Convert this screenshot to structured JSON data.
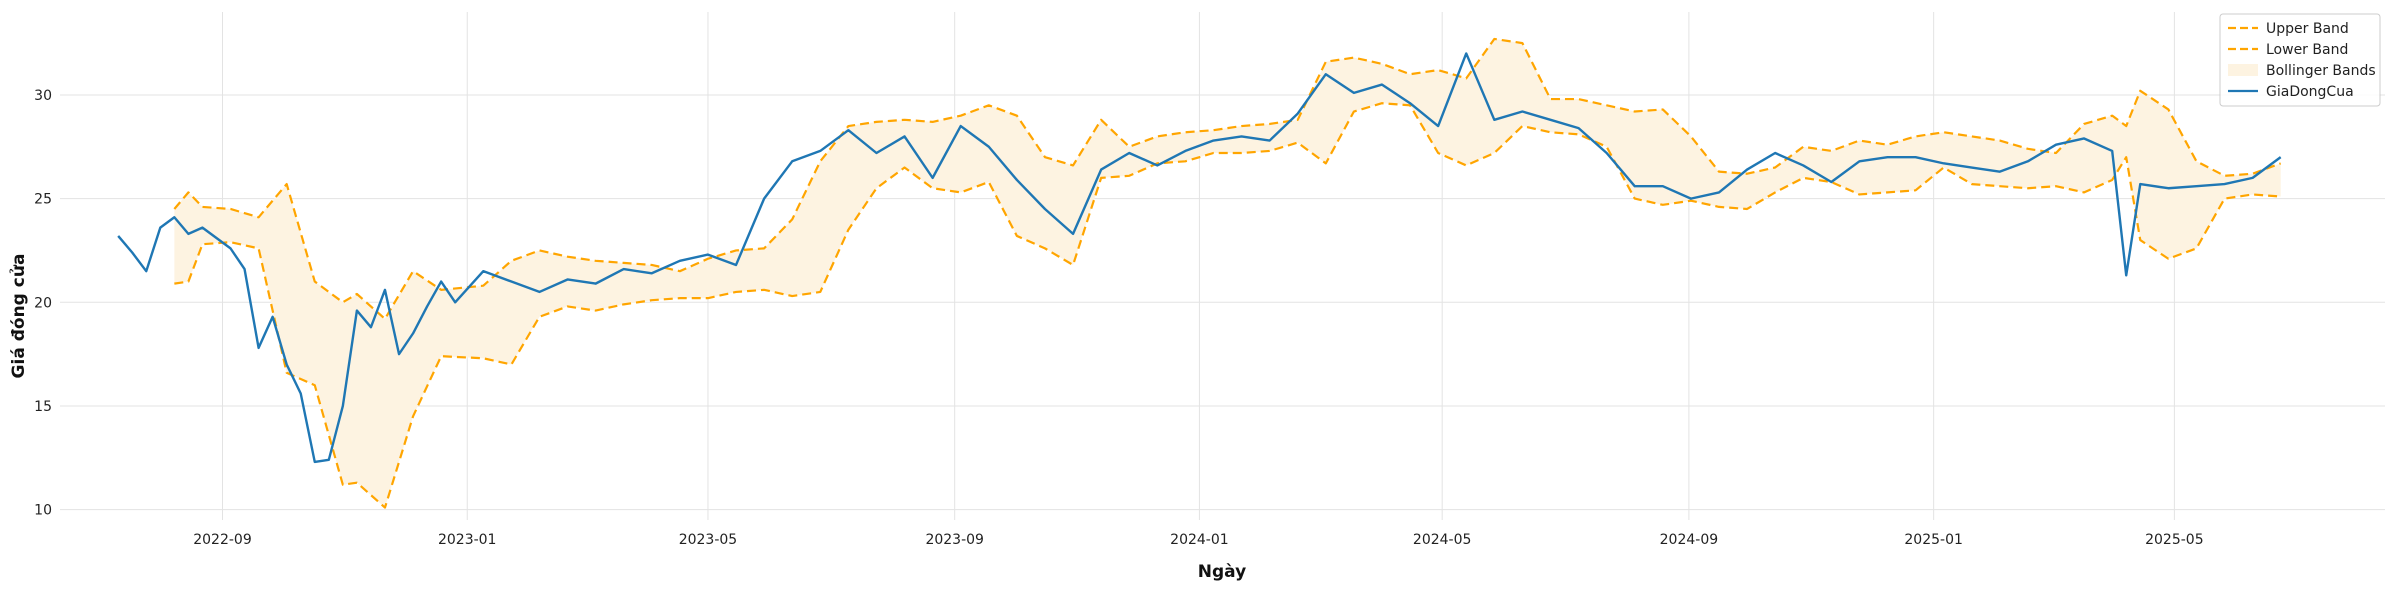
{
  "chart_data": {
    "type": "line",
    "title": "",
    "xlabel": "Ngày",
    "ylabel": "Giá đóng cửa",
    "x_ticks": [
      "2022-09",
      "2023-01",
      "2023-05",
      "2023-09",
      "2024-01",
      "2024-05",
      "2024-09",
      "2025-01",
      "2025-05"
    ],
    "y_ticks": [
      10,
      15,
      20,
      25,
      30
    ],
    "xlim": [
      "2022-06-12",
      "2025-08-14"
    ],
    "ylim": [
      9.5,
      34.0
    ],
    "grid": true,
    "legend_position": "top-right",
    "legend": [
      {
        "label": "Upper Band",
        "style": "dashed",
        "color": "#FFA500"
      },
      {
        "label": "Lower Band",
        "style": "dashed",
        "color": "#FFA500"
      },
      {
        "label": "Bollinger Bands",
        "style": "fill",
        "color": "#FDF3E1"
      },
      {
        "label": "GiaDongCua",
        "style": "solid",
        "color": "#1F77B4"
      }
    ],
    "series": [
      {
        "name": "GiaDongCua",
        "color": "#1F77B4",
        "x": [
          "2022-07-11",
          "2022-07-18",
          "2022-07-25",
          "2022-08-01",
          "2022-08-08",
          "2022-08-15",
          "2022-08-22",
          "2022-08-29",
          "2022-09-05",
          "2022-09-12",
          "2022-09-19",
          "2022-09-26",
          "2022-10-03",
          "2022-10-10",
          "2022-10-17",
          "2022-10-24",
          "2022-10-31",
          "2022-11-07",
          "2022-11-14",
          "2022-11-21",
          "2022-11-28",
          "2022-12-05",
          "2022-12-12",
          "2022-12-19",
          "2022-12-26",
          "2023-01-09",
          "2023-01-23",
          "2023-02-06",
          "2023-02-20",
          "2023-03-06",
          "2023-03-20",
          "2023-04-03",
          "2023-04-17",
          "2023-05-01",
          "2023-05-15",
          "2023-05-29",
          "2023-06-12",
          "2023-06-26",
          "2023-07-10",
          "2023-07-24",
          "2023-08-07",
          "2023-08-21",
          "2023-09-04",
          "2023-09-18",
          "2023-10-02",
          "2023-10-16",
          "2023-10-30",
          "2023-11-13",
          "2023-11-27",
          "2023-12-11",
          "2023-12-25",
          "2024-01-08",
          "2024-01-22",
          "2024-02-05",
          "2024-02-19",
          "2024-03-04",
          "2024-03-18",
          "2024-04-01",
          "2024-04-15",
          "2024-04-29",
          "2024-05-13",
          "2024-05-27",
          "2024-06-10",
          "2024-06-24",
          "2024-07-08",
          "2024-07-22",
          "2024-08-05",
          "2024-08-19",
          "2024-09-02",
          "2024-09-16",
          "2024-09-30",
          "2024-10-14",
          "2024-10-28",
          "2024-11-11",
          "2024-11-25",
          "2024-12-09",
          "2024-12-23",
          "2025-01-06",
          "2025-01-20",
          "2025-02-03",
          "2025-02-17",
          "2025-03-03",
          "2025-03-17",
          "2025-03-31",
          "2025-04-07",
          "2025-04-14",
          "2025-04-28",
          "2025-05-12",
          "2025-05-26",
          "2025-06-09",
          "2025-06-23"
        ],
        "values": [
          23.2,
          22.4,
          21.5,
          23.6,
          24.1,
          23.3,
          23.6,
          23.1,
          22.6,
          21.6,
          17.8,
          19.3,
          17.0,
          15.6,
          12.3,
          12.4,
          15.0,
          19.6,
          18.8,
          20.6,
          17.5,
          18.5,
          19.8,
          21.0,
          20.0,
          21.5,
          21.0,
          20.5,
          21.1,
          20.9,
          21.6,
          21.4,
          22.0,
          22.3,
          21.8,
          25.0,
          26.8,
          27.3,
          28.3,
          27.2,
          28.0,
          26.0,
          28.5,
          27.5,
          25.9,
          24.5,
          23.3,
          26.4,
          27.2,
          26.6,
          27.3,
          27.8,
          28.0,
          27.8,
          29.1,
          31.0,
          30.1,
          30.5,
          29.6,
          28.5,
          32.0,
          28.8,
          29.2,
          28.8,
          28.4,
          27.2,
          25.6,
          25.6,
          25.0,
          25.3,
          26.4,
          27.2,
          26.6,
          25.8,
          26.8,
          27.0,
          27.0,
          26.7,
          26.5,
          26.3,
          26.8,
          27.6,
          27.9,
          27.3,
          21.3,
          25.7,
          25.5,
          25.6,
          25.7,
          26.0,
          27.0
        ]
      },
      {
        "name": "Upper Band",
        "color": "#FFA500",
        "x": [
          "2022-08-08",
          "2022-08-15",
          "2022-08-22",
          "2022-09-05",
          "2022-09-19",
          "2022-10-03",
          "2022-10-17",
          "2022-10-31",
          "2022-11-07",
          "2022-11-21",
          "2022-12-05",
          "2022-12-19",
          "2023-01-09",
          "2023-01-23",
          "2023-02-06",
          "2023-02-20",
          "2023-03-06",
          "2023-03-20",
          "2023-04-03",
          "2023-04-17",
          "2023-05-01",
          "2023-05-15",
          "2023-05-29",
          "2023-06-12",
          "2023-06-26",
          "2023-07-10",
          "2023-07-24",
          "2023-08-07",
          "2023-08-21",
          "2023-09-04",
          "2023-09-18",
          "2023-10-02",
          "2023-10-16",
          "2023-10-30",
          "2023-11-13",
          "2023-11-27",
          "2023-12-11",
          "2023-12-25",
          "2024-01-08",
          "2024-01-22",
          "2024-02-05",
          "2024-02-19",
          "2024-03-04",
          "2024-03-18",
          "2024-04-01",
          "2024-04-15",
          "2024-04-29",
          "2024-05-13",
          "2024-05-27",
          "2024-06-10",
          "2024-06-24",
          "2024-07-08",
          "2024-07-22",
          "2024-08-05",
          "2024-08-19",
          "2024-09-02",
          "2024-09-16",
          "2024-09-30",
          "2024-10-14",
          "2024-10-28",
          "2024-11-11",
          "2024-11-25",
          "2024-12-09",
          "2024-12-23",
          "2025-01-06",
          "2025-01-20",
          "2025-02-03",
          "2025-02-17",
          "2025-03-03",
          "2025-03-17",
          "2025-03-31",
          "2025-04-07",
          "2025-04-14",
          "2025-04-28",
          "2025-05-12",
          "2025-05-26",
          "2025-06-09",
          "2025-06-23"
        ],
        "values": [
          24.5,
          25.3,
          24.6,
          24.5,
          24.1,
          25.7,
          21.0,
          20.0,
          20.4,
          19.2,
          21.5,
          20.6,
          20.8,
          22.0,
          22.5,
          22.2,
          22.0,
          21.9,
          21.8,
          21.5,
          22.1,
          22.5,
          22.6,
          24.0,
          26.8,
          28.5,
          28.7,
          28.8,
          28.7,
          29.0,
          29.5,
          29.0,
          27.0,
          26.6,
          28.8,
          27.5,
          28.0,
          28.2,
          28.3,
          28.5,
          28.6,
          28.8,
          31.6,
          31.8,
          31.5,
          31.0,
          31.2,
          30.8,
          32.7,
          32.5,
          29.8,
          29.8,
          29.5,
          29.2,
          29.3,
          28.0,
          26.3,
          26.2,
          26.5,
          27.5,
          27.3,
          27.8,
          27.6,
          28.0,
          28.2,
          28.0,
          27.8,
          27.4,
          27.2,
          28.6,
          29.0,
          28.5,
          30.2,
          29.3,
          26.8,
          26.1,
          26.2,
          26.7
        ]
      },
      {
        "name": "Lower Band",
        "color": "#FFA500",
        "x": [
          "2022-08-08",
          "2022-08-15",
          "2022-08-22",
          "2022-09-05",
          "2022-09-19",
          "2022-10-03",
          "2022-10-17",
          "2022-10-31",
          "2022-11-07",
          "2022-11-21",
          "2022-12-05",
          "2022-12-19",
          "2023-01-09",
          "2023-01-23",
          "2023-02-06",
          "2023-02-20",
          "2023-03-06",
          "2023-03-20",
          "2023-04-03",
          "2023-04-17",
          "2023-05-01",
          "2023-05-15",
          "2023-05-29",
          "2023-06-12",
          "2023-06-26",
          "2023-07-10",
          "2023-07-24",
          "2023-08-07",
          "2023-08-21",
          "2023-09-04",
          "2023-09-18",
          "2023-10-02",
          "2023-10-16",
          "2023-10-30",
          "2023-11-13",
          "2023-11-27",
          "2023-12-11",
          "2023-12-25",
          "2024-01-08",
          "2024-01-22",
          "2024-02-05",
          "2024-02-19",
          "2024-03-04",
          "2024-03-18",
          "2024-04-01",
          "2024-04-15",
          "2024-04-29",
          "2024-05-13",
          "2024-05-27",
          "2024-06-10",
          "2024-06-24",
          "2024-07-08",
          "2024-07-22",
          "2024-08-05",
          "2024-08-19",
          "2024-09-02",
          "2024-09-16",
          "2024-09-30",
          "2024-10-14",
          "2024-10-28",
          "2024-11-11",
          "2024-11-25",
          "2024-12-09",
          "2024-12-23",
          "2025-01-06",
          "2025-01-20",
          "2025-02-03",
          "2025-02-17",
          "2025-03-03",
          "2025-03-17",
          "2025-03-31",
          "2025-04-07",
          "2025-04-14",
          "2025-04-28",
          "2025-05-12",
          "2025-05-26",
          "2025-06-09",
          "2025-06-23"
        ],
        "values": [
          20.9,
          21.0,
          22.8,
          22.9,
          22.6,
          16.6,
          16.0,
          11.2,
          11.3,
          10.1,
          14.5,
          17.4,
          17.3,
          17.0,
          19.3,
          19.8,
          19.6,
          19.9,
          20.1,
          20.2,
          20.2,
          20.5,
          20.6,
          20.3,
          20.5,
          23.5,
          25.5,
          26.5,
          25.5,
          25.3,
          25.8,
          23.2,
          22.6,
          21.8,
          26.0,
          26.1,
          26.7,
          26.8,
          27.2,
          27.2,
          27.3,
          27.7,
          26.7,
          29.2,
          29.6,
          29.5,
          27.2,
          26.6,
          27.2,
          28.5,
          28.2,
          28.1,
          27.5,
          25.0,
          24.7,
          24.9,
          24.6,
          24.5,
          25.3,
          26.0,
          25.8,
          25.2,
          25.3,
          25.4,
          26.5,
          25.7,
          25.6,
          25.5,
          25.6,
          25.3,
          25.9,
          27.0,
          23.0,
          22.1,
          22.6,
          25.0,
          25.2,
          25.1
        ]
      }
    ]
  }
}
